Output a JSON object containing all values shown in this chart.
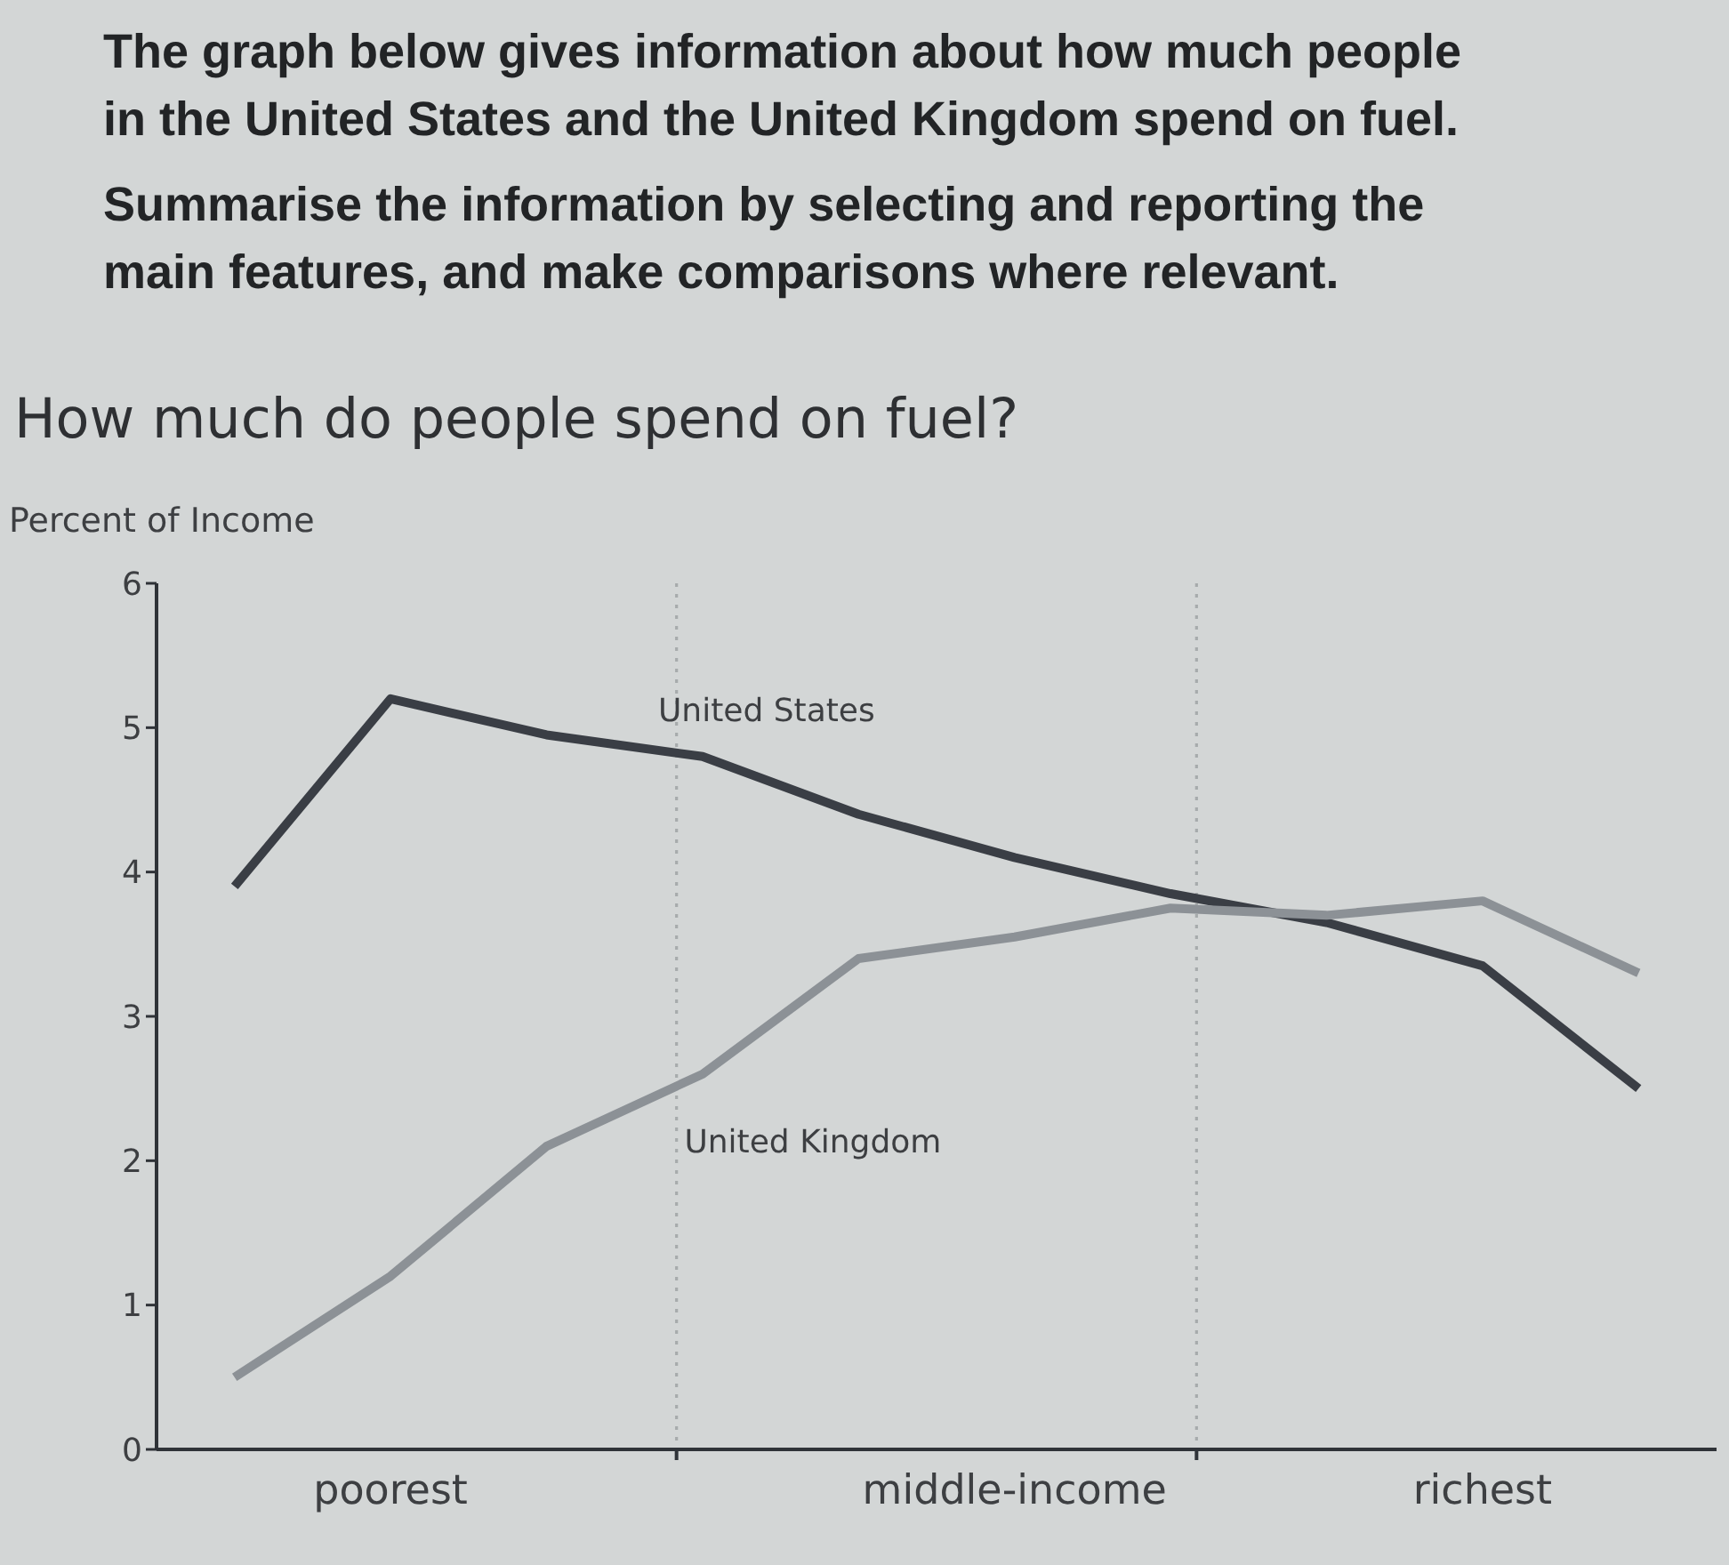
{
  "chart_data": {
    "type": "line",
    "title": "How much do people spend on fuel?",
    "ylabel": "Percent of Income",
    "annotations": [
      "The graph below gives information about how much people in the United States and the United Kingdom spend on fuel.",
      "Summarise the information by selecting and reporting the main features, and make comparisons where relevant."
    ],
    "categories": [
      null,
      "poorest",
      null,
      null,
      null,
      "middle-income",
      null,
      null,
      "richest",
      null
    ],
    "ylim": [
      0,
      6
    ],
    "yticks": [
      0,
      1,
      2,
      3,
      4,
      5,
      6
    ],
    "series": [
      {
        "name": "United States",
        "color": "#3a3e45",
        "values": [
          3.9,
          5.2,
          4.95,
          4.8,
          4.4,
          4.1,
          3.85,
          3.65,
          3.35,
          2.5
        ]
      },
      {
        "name": "United Kingdom",
        "color": "#8c9196",
        "values": [
          0.5,
          1.2,
          2.1,
          2.6,
          3.4,
          3.55,
          3.75,
          3.7,
          3.8,
          3.3
        ]
      }
    ],
    "marker": "none",
    "line_style": "solid"
  }
}
